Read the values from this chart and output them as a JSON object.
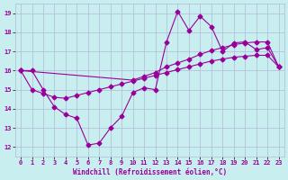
{
  "xlabel": "Windchill (Refroidissement éolien,°C)",
  "background_color": "#c8eef0",
  "grid_color": "#b0b8d8",
  "line_color": "#990099",
  "xlim": [
    -0.5,
    23.5
  ],
  "ylim": [
    11.5,
    19.5
  ],
  "yticks": [
    12,
    13,
    14,
    15,
    16,
    17,
    18,
    19
  ],
  "xticks": [
    0,
    1,
    2,
    3,
    4,
    5,
    6,
    7,
    8,
    9,
    10,
    11,
    12,
    13,
    14,
    15,
    16,
    17,
    18,
    19,
    20,
    21,
    22,
    23
  ],
  "series1_x": [
    0,
    1,
    2,
    3,
    4,
    5,
    6,
    7,
    8,
    9,
    10,
    11,
    12,
    13,
    14,
    15,
    16,
    17,
    18,
    19,
    20,
    21,
    22,
    23
  ],
  "series1_y": [
    16.0,
    16.0,
    15.0,
    14.1,
    13.7,
    13.5,
    12.1,
    12.2,
    13.0,
    13.6,
    14.85,
    15.1,
    15.0,
    17.5,
    19.1,
    18.1,
    18.85,
    18.3,
    17.0,
    17.45,
    17.5,
    17.1,
    17.2,
    16.2
  ],
  "series2_x": [
    0,
    10,
    11,
    12,
    13,
    14,
    15,
    16,
    17,
    18,
    19,
    20,
    21,
    22,
    23
  ],
  "series2_y": [
    16.0,
    15.5,
    15.7,
    15.9,
    16.2,
    16.4,
    16.6,
    16.85,
    17.05,
    17.2,
    17.35,
    17.45,
    17.5,
    17.5,
    16.2
  ],
  "series3_x": [
    0,
    1,
    2,
    3,
    4,
    5,
    6,
    7,
    8,
    9,
    10,
    11,
    12,
    13,
    14,
    15,
    16,
    17,
    18,
    19,
    20,
    21,
    22,
    23
  ],
  "series3_y": [
    16.0,
    15.0,
    14.8,
    14.6,
    14.55,
    14.7,
    14.85,
    15.0,
    15.15,
    15.3,
    15.45,
    15.6,
    15.75,
    15.9,
    16.05,
    16.2,
    16.35,
    16.5,
    16.6,
    16.7,
    16.75,
    16.8,
    16.8,
    16.2
  ],
  "marker": "D",
  "markersize": 2.5,
  "linewidth": 0.8
}
